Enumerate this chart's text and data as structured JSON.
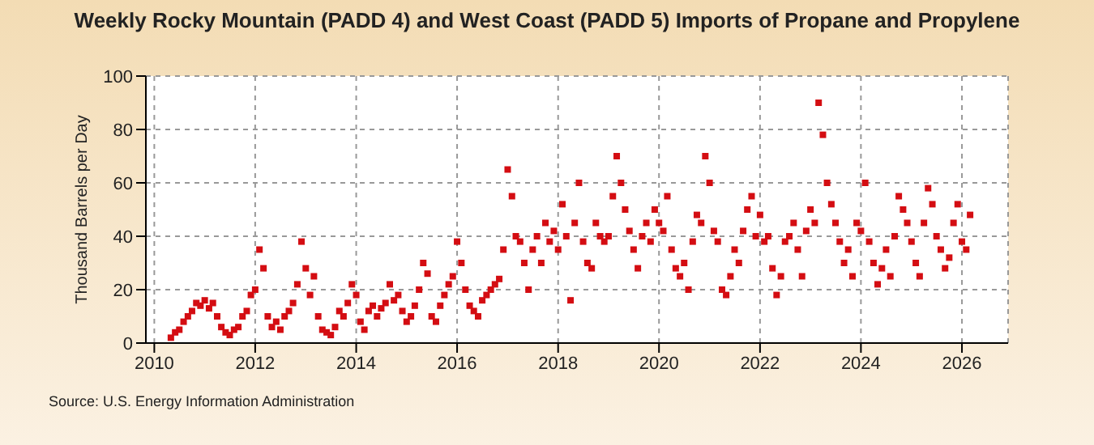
{
  "chart_data": {
    "type": "scatter",
    "title": "Weekly Rocky Mountain (PADD 4) and West Coast (PADD 5) Imports of Propane and Propylene",
    "ylabel": "Thousand Barrels per Day",
    "annotations": [
      "Source: U.S. Energy Information Administration"
    ],
    "x": [
      "2010-05",
      "2010-06",
      "2010-07",
      "2010-08",
      "2010-09",
      "2010-10",
      "2010-11",
      "2010-12",
      "2011-01",
      "2011-02",
      "2011-03",
      "2011-04",
      "2011-05",
      "2011-06",
      "2011-07",
      "2011-08",
      "2011-09",
      "2011-10",
      "2011-11",
      "2011-12",
      "2012-01",
      "2012-02",
      "2012-03",
      "2012-04",
      "2012-05",
      "2012-06",
      "2012-07",
      "2012-08",
      "2012-09",
      "2012-10",
      "2012-11",
      "2012-12",
      "2013-01",
      "2013-02",
      "2013-03",
      "2013-04",
      "2013-05",
      "2013-06",
      "2013-07",
      "2013-08",
      "2013-09",
      "2013-10",
      "2013-11",
      "2013-12",
      "2014-01",
      "2014-02",
      "2014-03",
      "2014-04",
      "2014-05",
      "2014-06",
      "2014-07",
      "2014-08",
      "2014-09",
      "2014-10",
      "2014-11",
      "2014-12",
      "2015-01",
      "2015-02",
      "2015-03",
      "2015-04",
      "2015-05",
      "2015-06",
      "2015-07",
      "2015-08",
      "2015-09",
      "2015-10",
      "2015-11",
      "2015-12",
      "2016-01",
      "2016-02",
      "2016-03",
      "2016-04",
      "2016-05",
      "2016-06",
      "2016-07",
      "2016-08",
      "2016-09",
      "2016-10",
      "2016-11",
      "2016-12",
      "2017-01",
      "2017-02",
      "2017-03",
      "2017-04",
      "2017-05",
      "2017-06",
      "2017-07",
      "2017-08",
      "2017-09",
      "2017-10",
      "2017-11",
      "2017-12",
      "2018-01",
      "2018-02",
      "2018-03",
      "2018-04",
      "2018-05",
      "2018-06",
      "2018-07",
      "2018-08",
      "2018-09",
      "2018-10",
      "2018-11",
      "2018-12",
      "2019-01",
      "2019-02",
      "2019-03",
      "2019-04",
      "2019-05",
      "2019-06",
      "2019-07",
      "2019-08",
      "2019-09",
      "2019-10",
      "2019-11",
      "2019-12",
      "2020-01",
      "2020-02",
      "2020-03",
      "2020-04",
      "2020-05",
      "2020-06",
      "2020-07",
      "2020-08",
      "2020-09",
      "2020-10",
      "2020-11",
      "2020-12",
      "2021-01",
      "2021-02",
      "2021-03",
      "2021-04",
      "2021-05",
      "2021-06",
      "2021-07",
      "2021-08",
      "2021-09",
      "2021-10",
      "2021-11",
      "2021-12",
      "2022-01",
      "2022-02",
      "2022-03",
      "2022-04",
      "2022-05",
      "2022-06",
      "2022-07",
      "2022-08",
      "2022-09",
      "2022-10",
      "2022-11",
      "2022-12",
      "2023-01",
      "2023-02",
      "2023-03",
      "2023-04",
      "2023-05",
      "2023-06",
      "2023-07",
      "2023-08",
      "2023-09",
      "2023-10",
      "2023-11",
      "2023-12",
      "2024-01",
      "2024-02",
      "2024-03",
      "2024-04",
      "2024-05",
      "2024-06",
      "2024-07",
      "2024-08",
      "2024-09",
      "2024-10",
      "2024-11",
      "2024-12",
      "2025-01",
      "2025-02",
      "2025-03",
      "2025-04",
      "2025-05",
      "2025-06",
      "2025-07",
      "2025-08",
      "2025-09",
      "2025-10",
      "2025-11",
      "2025-12",
      "2026-01",
      "2026-02",
      "2026-03"
    ],
    "series": [
      {
        "color": "#d40d12",
        "values": [
          2,
          4,
          5,
          8,
          10,
          12,
          15,
          14,
          16,
          13,
          15,
          10,
          6,
          4,
          3,
          5,
          6,
          10,
          12,
          18,
          20,
          35,
          28,
          10,
          6,
          8,
          5,
          10,
          12,
          15,
          22,
          38,
          28,
          18,
          25,
          10,
          5,
          4,
          3,
          6,
          12,
          10,
          15,
          22,
          18,
          8,
          5,
          12,
          14,
          10,
          13,
          15,
          22,
          16,
          18,
          12,
          8,
          10,
          14,
          20,
          30,
          26,
          10,
          8,
          14,
          18,
          22,
          25,
          38,
          30,
          20,
          14,
          12,
          10,
          16,
          18,
          20,
          22,
          24,
          35,
          65,
          55,
          40,
          38,
          30,
          20,
          35,
          40,
          30,
          45,
          38,
          42,
          35,
          52,
          40,
          16,
          45,
          60,
          38,
          30,
          28,
          45,
          40,
          38,
          40,
          55,
          70,
          60,
          50,
          42,
          35,
          28,
          40,
          45,
          38,
          50,
          45,
          42,
          55,
          35,
          28,
          25,
          30,
          20,
          38,
          48,
          45,
          70,
          60,
          42,
          38,
          20,
          18,
          25,
          35,
          30,
          42,
          50,
          55,
          40,
          48,
          38,
          40,
          28,
          18,
          25,
          38,
          40,
          45,
          35,
          25,
          42,
          50,
          45,
          90,
          78,
          60,
          52,
          45,
          38,
          30,
          35,
          25,
          45,
          42,
          60,
          38,
          30,
          22,
          28,
          35,
          25,
          40,
          55,
          50,
          45,
          38,
          30,
          25,
          45,
          58,
          52,
          40,
          35,
          28,
          32,
          45,
          52,
          38,
          35,
          48
        ]
      }
    ],
    "xlim": [
      "2009-11",
      "2026-12"
    ],
    "xticks": [
      "2010",
      "2012",
      "2014",
      "2016",
      "2018",
      "2020",
      "2022",
      "2024",
      "2026"
    ],
    "ylim": [
      0,
      100
    ],
    "yticks": [
      0,
      20,
      40,
      60,
      80,
      100
    ],
    "grid": true,
    "marker": "square",
    "legend": false
  }
}
